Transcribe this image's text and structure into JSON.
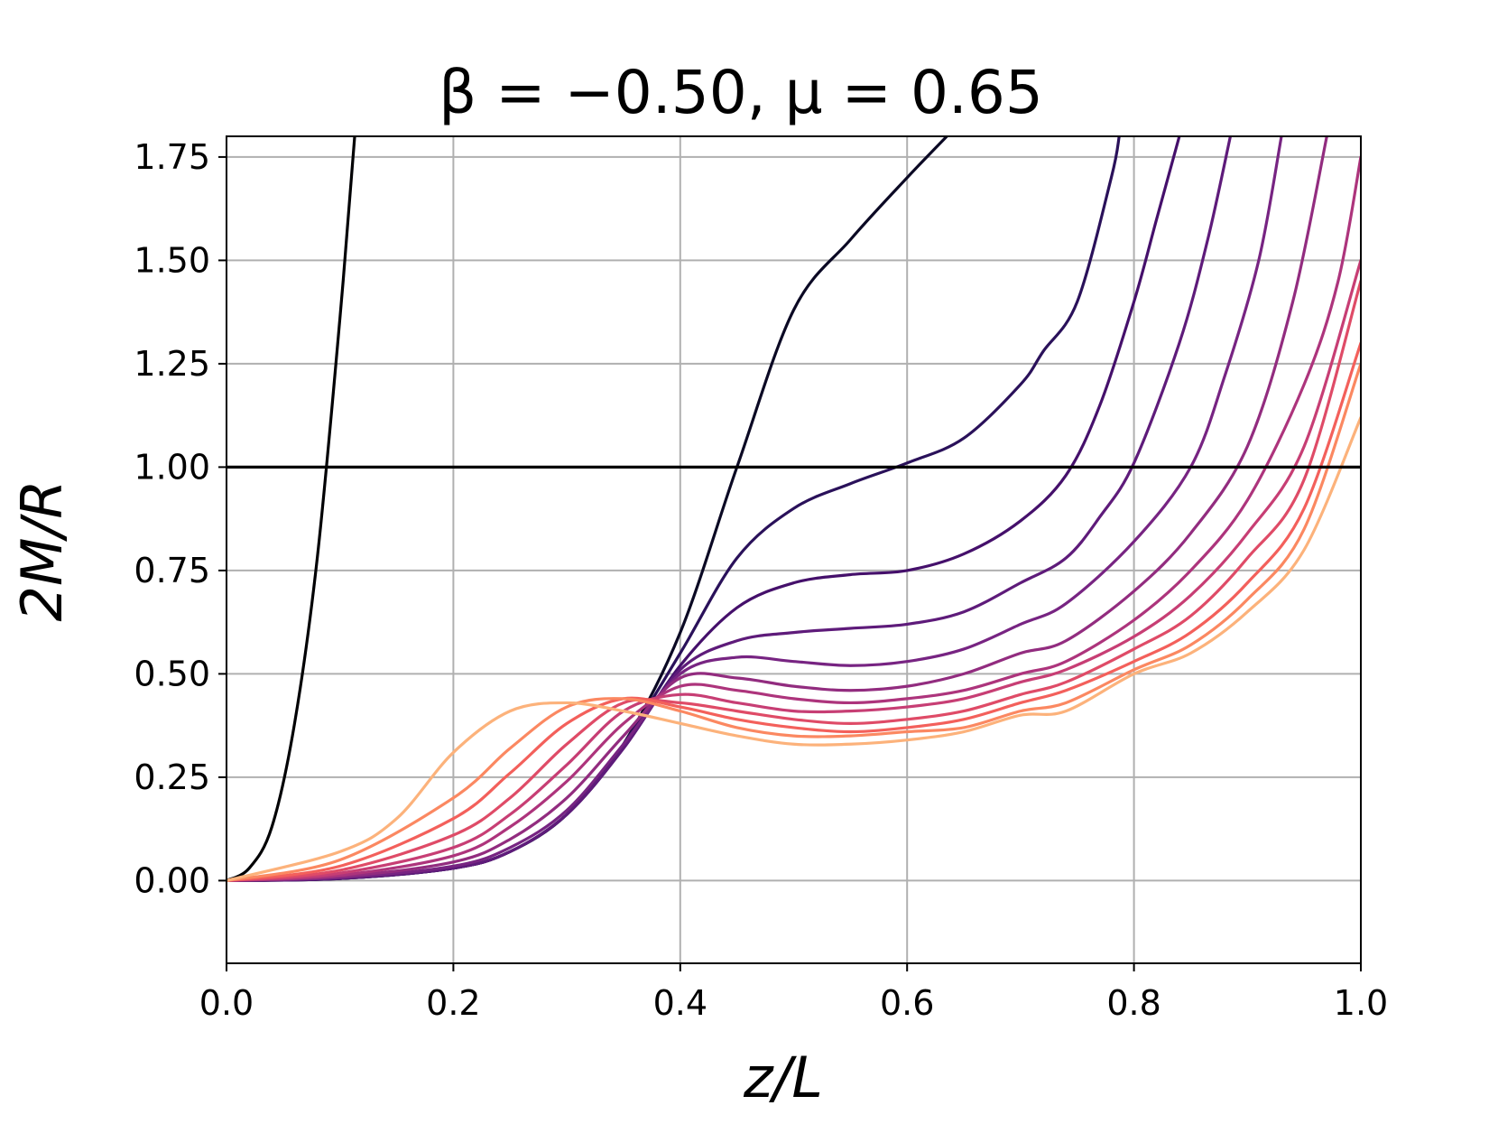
{
  "chart_data": {
    "type": "line",
    "title": "β = −0.50, μ = 0.65",
    "xlabel": "z/L",
    "ylabel": "2M/R",
    "xlim": [
      0.0,
      1.0
    ],
    "ylim": [
      -0.2,
      1.8
    ],
    "xticks": [
      "0.0",
      "0.2",
      "0.4",
      "0.6",
      "0.8",
      "1.0"
    ],
    "yticks": [
      "0.00",
      "0.25",
      "0.50",
      "0.75",
      "1.00",
      "1.25",
      "1.50",
      "1.75"
    ],
    "grid": true,
    "reference_line": {
      "y": 1.0,
      "color": "#000000"
    },
    "series": [
      {
        "color": "#000004",
        "x": [
          0,
          0.02,
          0.04,
          0.06,
          0.08,
          0.1,
          0.113
        ],
        "y": [
          0,
          0.03,
          0.13,
          0.38,
          0.78,
          1.36,
          1.8
        ]
      },
      {
        "color": "#0b0924",
        "x": [
          0,
          0.1,
          0.2,
          0.25,
          0.3,
          0.35,
          0.4,
          0.45,
          0.5,
          0.55,
          0.6,
          0.635
        ],
        "y": [
          0,
          0.005,
          0.03,
          0.07,
          0.16,
          0.33,
          0.6,
          1.0,
          1.38,
          1.55,
          1.7,
          1.8
        ]
      },
      {
        "color": "#2a115a",
        "x": [
          0,
          0.1,
          0.2,
          0.25,
          0.3,
          0.35,
          0.4,
          0.45,
          0.5,
          0.55,
          0.6,
          0.65,
          0.7,
          0.72,
          0.75,
          0.78,
          0.787
        ],
        "y": [
          0,
          0.005,
          0.03,
          0.07,
          0.16,
          0.33,
          0.55,
          0.78,
          0.9,
          0.96,
          1.01,
          1.07,
          1.2,
          1.28,
          1.4,
          1.7,
          1.8
        ]
      },
      {
        "color": "#45106b",
        "x": [
          0,
          0.1,
          0.2,
          0.25,
          0.3,
          0.35,
          0.4,
          0.45,
          0.5,
          0.55,
          0.6,
          0.65,
          0.7,
          0.74,
          0.77,
          0.8,
          0.82,
          0.84
        ],
        "y": [
          0,
          0.005,
          0.03,
          0.07,
          0.16,
          0.32,
          0.52,
          0.66,
          0.72,
          0.74,
          0.75,
          0.79,
          0.87,
          0.98,
          1.15,
          1.4,
          1.6,
          1.8
        ]
      },
      {
        "color": "#5e1b7a",
        "x": [
          0,
          0.1,
          0.2,
          0.25,
          0.3,
          0.35,
          0.4,
          0.45,
          0.5,
          0.55,
          0.6,
          0.65,
          0.7,
          0.74,
          0.77,
          0.8,
          0.84,
          0.865,
          0.885
        ],
        "y": [
          0,
          0.006,
          0.03,
          0.07,
          0.16,
          0.32,
          0.51,
          0.58,
          0.6,
          0.61,
          0.62,
          0.65,
          0.72,
          0.78,
          0.88,
          1.01,
          1.3,
          1.55,
          1.8
        ]
      },
      {
        "color": "#772482",
        "x": [
          0,
          0.1,
          0.2,
          0.25,
          0.3,
          0.35,
          0.4,
          0.45,
          0.5,
          0.55,
          0.6,
          0.65,
          0.7,
          0.74,
          0.8,
          0.85,
          0.88,
          0.91,
          0.93
        ],
        "y": [
          0,
          0.007,
          0.035,
          0.08,
          0.17,
          0.33,
          0.5,
          0.54,
          0.53,
          0.52,
          0.53,
          0.56,
          0.62,
          0.67,
          0.82,
          1.0,
          1.22,
          1.5,
          1.8
        ]
      },
      {
        "color": "#922c7f",
        "x": [
          0,
          0.1,
          0.2,
          0.25,
          0.3,
          0.35,
          0.4,
          0.45,
          0.5,
          0.55,
          0.6,
          0.65,
          0.7,
          0.74,
          0.8,
          0.85,
          0.9,
          0.94,
          0.97
        ],
        "y": [
          0,
          0.01,
          0.045,
          0.1,
          0.2,
          0.35,
          0.49,
          0.49,
          0.47,
          0.46,
          0.47,
          0.5,
          0.55,
          0.58,
          0.7,
          0.84,
          1.05,
          1.4,
          1.8
        ]
      },
      {
        "color": "#ad347c",
        "x": [
          0,
          0.1,
          0.2,
          0.25,
          0.3,
          0.35,
          0.4,
          0.45,
          0.5,
          0.55,
          0.6,
          0.65,
          0.7,
          0.74,
          0.8,
          0.85,
          0.9,
          0.95,
          0.98,
          1.0
        ],
        "y": [
          0,
          0.013,
          0.06,
          0.13,
          0.24,
          0.38,
          0.47,
          0.46,
          0.44,
          0.43,
          0.44,
          0.46,
          0.5,
          0.53,
          0.63,
          0.75,
          0.92,
          1.2,
          1.45,
          1.75
        ]
      },
      {
        "color": "#c73e74",
        "x": [
          0,
          0.1,
          0.2,
          0.25,
          0.3,
          0.35,
          0.4,
          0.45,
          0.5,
          0.55,
          0.6,
          0.65,
          0.7,
          0.74,
          0.8,
          0.85,
          0.9,
          0.95,
          1.0
        ],
        "y": [
          0,
          0.018,
          0.08,
          0.16,
          0.28,
          0.41,
          0.45,
          0.43,
          0.41,
          0.41,
          0.42,
          0.44,
          0.48,
          0.51,
          0.59,
          0.69,
          0.84,
          1.05,
          1.5
        ]
      },
      {
        "color": "#df4b67",
        "x": [
          0,
          0.1,
          0.2,
          0.25,
          0.3,
          0.35,
          0.4,
          0.45,
          0.5,
          0.55,
          0.6,
          0.65,
          0.7,
          0.74,
          0.8,
          0.85,
          0.9,
          0.95,
          1.0
        ],
        "y": [
          0,
          0.025,
          0.11,
          0.2,
          0.33,
          0.43,
          0.43,
          0.41,
          0.39,
          0.38,
          0.39,
          0.41,
          0.45,
          0.48,
          0.56,
          0.64,
          0.78,
          0.97,
          1.45
        ]
      },
      {
        "color": "#f3605b",
        "x": [
          0,
          0.1,
          0.2,
          0.25,
          0.3,
          0.35,
          0.4,
          0.45,
          0.5,
          0.55,
          0.6,
          0.65,
          0.7,
          0.74,
          0.8,
          0.85,
          0.9,
          0.95,
          1.0
        ],
        "y": [
          0,
          0.035,
          0.15,
          0.26,
          0.38,
          0.44,
          0.42,
          0.39,
          0.37,
          0.36,
          0.37,
          0.39,
          0.43,
          0.46,
          0.53,
          0.6,
          0.72,
          0.9,
          1.3
        ]
      },
      {
        "color": "#fb8861",
        "x": [
          0,
          0.1,
          0.2,
          0.25,
          0.3,
          0.35,
          0.4,
          0.45,
          0.5,
          0.55,
          0.6,
          0.65,
          0.7,
          0.74,
          0.8,
          0.85,
          0.9,
          0.95,
          1.0
        ],
        "y": [
          0,
          0.05,
          0.2,
          0.32,
          0.42,
          0.44,
          0.41,
          0.37,
          0.35,
          0.35,
          0.36,
          0.37,
          0.41,
          0.43,
          0.51,
          0.57,
          0.68,
          0.85,
          1.25
        ]
      },
      {
        "color": "#fcb27b",
        "x": [
          0,
          0.1,
          0.15,
          0.2,
          0.25,
          0.3,
          0.35,
          0.4,
          0.45,
          0.5,
          0.55,
          0.6,
          0.65,
          0.7,
          0.74,
          0.8,
          0.85,
          0.9,
          0.95,
          1.0
        ],
        "y": [
          0,
          0.07,
          0.15,
          0.31,
          0.41,
          0.43,
          0.41,
          0.38,
          0.35,
          0.33,
          0.33,
          0.34,
          0.36,
          0.4,
          0.41,
          0.5,
          0.55,
          0.65,
          0.8,
          1.12
        ]
      }
    ]
  }
}
